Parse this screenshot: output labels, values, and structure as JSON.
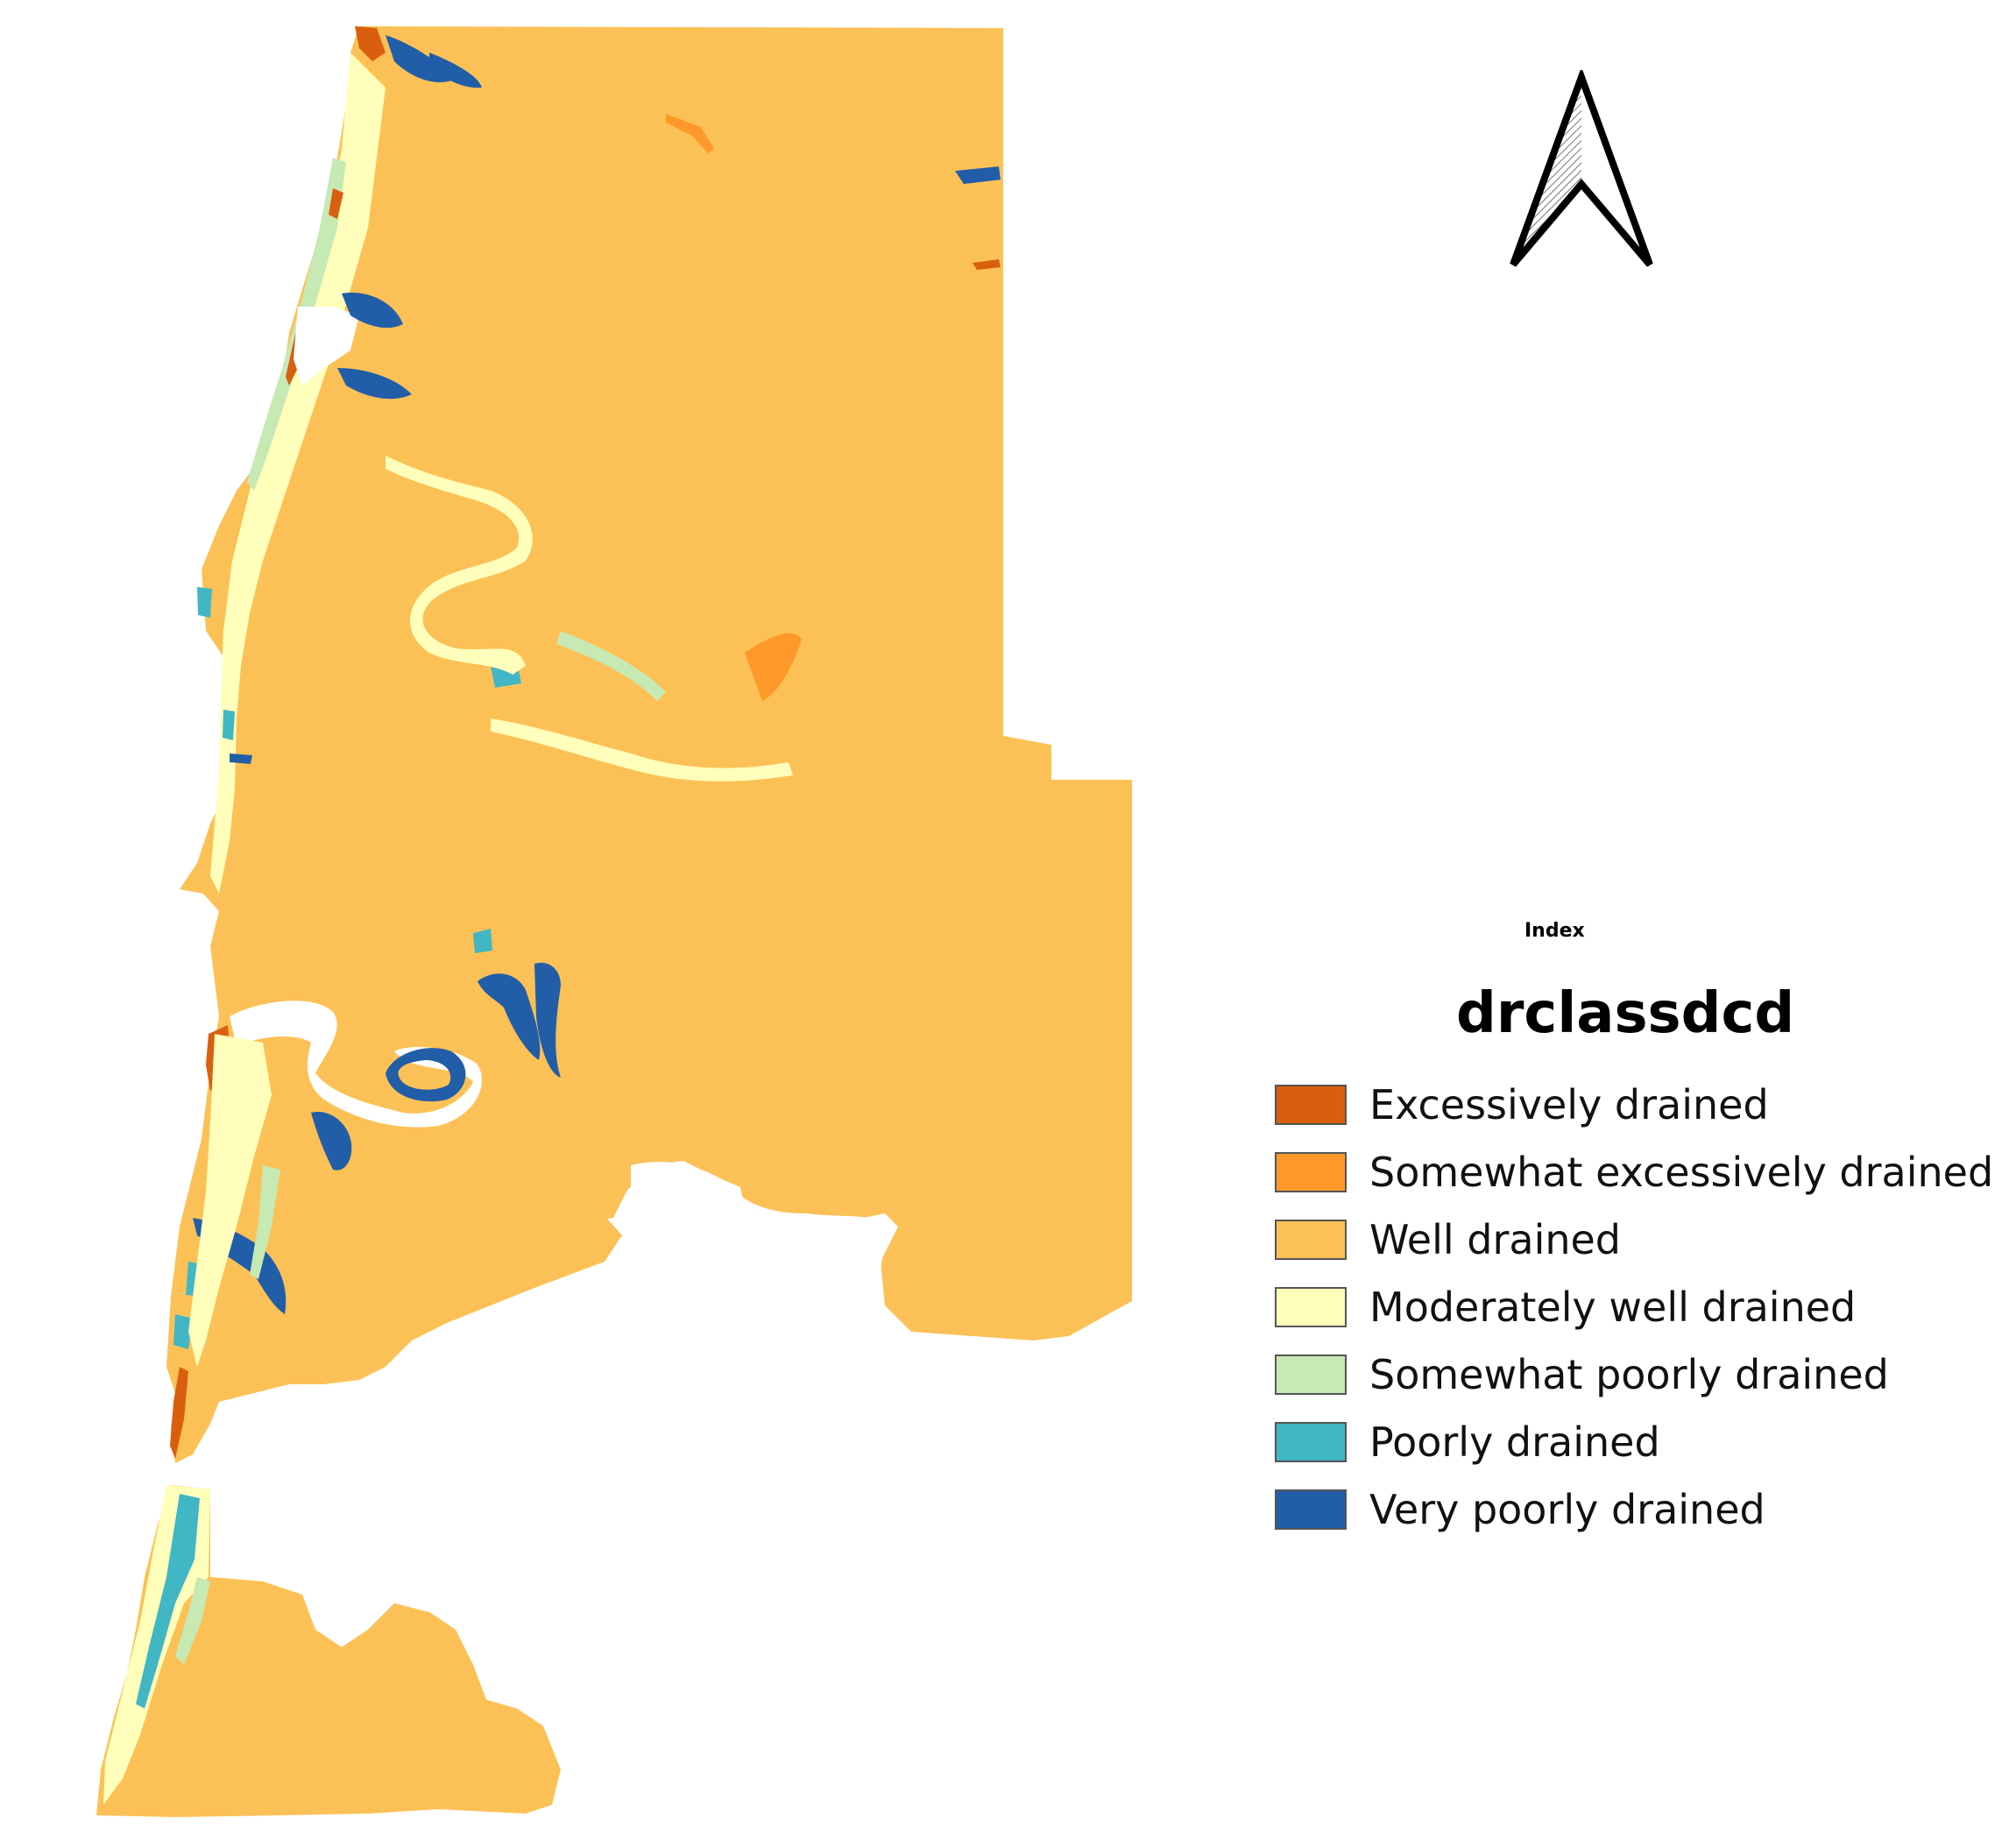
{
  "legend": {
    "index_label": "Index",
    "title": "drclassdcd",
    "items": [
      {
        "label": "Excessively drained",
        "color": "#d95f0e"
      },
      {
        "label": "Somewhat excessively drained",
        "color": "#fe9929"
      },
      {
        "label": "Well drained",
        "color": "#fcc156"
      },
      {
        "label": "Moderately well drained",
        "color": "#ffffbb"
      },
      {
        "label": "Somewhat poorly drained",
        "color": "#c7e9b4"
      },
      {
        "label": "Poorly drained",
        "color": "#41b6c4"
      },
      {
        "label": "Very poorly drained",
        "color": "#225ea8"
      }
    ]
  },
  "north_arrow": {
    "icon": "north-arrow-icon"
  }
}
